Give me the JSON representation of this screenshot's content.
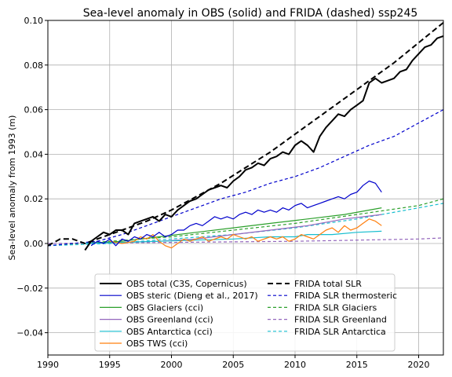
{
  "chart_data": {
    "type": "line",
    "title": "Sea-level anomaly in OBS (solid) and FRIDA (dashed) ssp245",
    "xlabel": "",
    "ylabel": "Sea-level anomaly from 1993 (m)",
    "xlim": [
      1990,
      2022
    ],
    "ylim": [
      -0.05,
      0.1
    ],
    "xticks": [
      1990,
      1995,
      2000,
      2005,
      2010,
      2015,
      2020
    ],
    "yticks": [
      -0.04,
      -0.02,
      0.0,
      0.02,
      0.04,
      0.06,
      0.08,
      0.1
    ],
    "ytick_labels": [
      "−0.04",
      "−0.02",
      "0.00",
      "0.02",
      "0.04",
      "0.06",
      "0.08",
      "0.10"
    ],
    "grid": true,
    "legend_placement": "bottom-center",
    "series": [
      {
        "name": "OBS total (C3S, Copernicus)",
        "color": "#000000",
        "style": "solid",
        "width": 2,
        "x": [
          1993.0,
          1993.5,
          1994.0,
          1994.5,
          1995.0,
          1995.5,
          1996.0,
          1996.5,
          1997.0,
          1997.5,
          1998.0,
          1998.5,
          1999.0,
          1999.5,
          2000.0,
          2000.5,
          2001.0,
          2001.5,
          2002.0,
          2002.5,
          2003.0,
          2003.5,
          2004.0,
          2004.5,
          2005.0,
          2005.5,
          2006.0,
          2006.5,
          2007.0,
          2007.5,
          2008.0,
          2008.5,
          2009.0,
          2009.5,
          2010.0,
          2010.5,
          2011.0,
          2011.5,
          2012.0,
          2012.5,
          2013.0,
          2013.5,
          2014.0,
          2014.5,
          2015.0,
          2015.5,
          2016.0,
          2016.5,
          2017.0,
          2017.5,
          2018.0,
          2018.5,
          2019.0,
          2019.5,
          2020.0,
          2020.5,
          2021.0,
          2021.5,
          2022.0
        ],
        "y": [
          -0.003,
          0.001,
          0.003,
          0.005,
          0.004,
          0.006,
          0.006,
          0.004,
          0.009,
          0.01,
          0.011,
          0.012,
          0.01,
          0.013,
          0.012,
          0.015,
          0.017,
          0.019,
          0.02,
          0.022,
          0.024,
          0.025,
          0.026,
          0.025,
          0.028,
          0.03,
          0.033,
          0.034,
          0.036,
          0.035,
          0.038,
          0.039,
          0.041,
          0.04,
          0.044,
          0.046,
          0.044,
          0.041,
          0.048,
          0.052,
          0.055,
          0.058,
          0.057,
          0.06,
          0.062,
          0.064,
          0.072,
          0.074,
          0.072,
          0.073,
          0.074,
          0.077,
          0.078,
          0.082,
          0.085,
          0.088,
          0.089,
          0.092,
          0.093
        ]
      },
      {
        "name": "OBS steric (Dieng et al., 2017)",
        "color": "#0000cc",
        "style": "solid",
        "width": 1.2,
        "x": [
          1993.5,
          1994.0,
          1994.5,
          1995.0,
          1995.5,
          1996.0,
          1996.5,
          1997.0,
          1997.5,
          1998.0,
          1998.5,
          1999.0,
          1999.5,
          2000.0,
          2000.5,
          2001.0,
          2001.5,
          2002.0,
          2002.5,
          2003.0,
          2003.5,
          2004.0,
          2004.5,
          2005.0,
          2005.5,
          2006.0,
          2006.5,
          2007.0,
          2007.5,
          2008.0,
          2008.5,
          2009.0,
          2009.5,
          2010.0,
          2010.5,
          2011.0,
          2011.5,
          2012.0,
          2012.5,
          2013.0,
          2013.5,
          2014.0,
          2014.5,
          2015.0,
          2015.5,
          2016.0,
          2016.5,
          2017.0
        ],
        "y": [
          -0.001,
          0.001,
          0.0,
          0.002,
          -0.001,
          0.002,
          0.001,
          0.003,
          0.002,
          0.004,
          0.003,
          0.005,
          0.003,
          0.004,
          0.006,
          0.006,
          0.008,
          0.009,
          0.008,
          0.01,
          0.012,
          0.011,
          0.012,
          0.011,
          0.013,
          0.014,
          0.013,
          0.015,
          0.014,
          0.015,
          0.014,
          0.016,
          0.015,
          0.017,
          0.018,
          0.016,
          0.017,
          0.018,
          0.019,
          0.02,
          0.021,
          0.02,
          0.022,
          0.023,
          0.026,
          0.028,
          0.027,
          0.023
        ]
      },
      {
        "name": "OBS Glaciers (cci)",
        "color": "#2ca02c",
        "style": "solid",
        "width": 1.2,
        "x": [
          1993,
          1996,
          1999,
          2002,
          2005,
          2008,
          2011,
          2014,
          2017
        ],
        "y": [
          0.0,
          0.001,
          0.003,
          0.005,
          0.007,
          0.009,
          0.011,
          0.013,
          0.016
        ]
      },
      {
        "name": "OBS Greenland (cci)",
        "color": "#9467bd",
        "style": "solid",
        "width": 1.2,
        "x": [
          1993,
          1996,
          1999,
          2002,
          2005,
          2008,
          2011,
          2014,
          2017
        ],
        "y": [
          0.0,
          0.0005,
          0.001,
          0.002,
          0.004,
          0.006,
          0.008,
          0.011,
          0.013
        ]
      },
      {
        "name": "OBS Antarctica (cci)",
        "color": "#17becf",
        "style": "solid",
        "width": 1.2,
        "x": [
          1993,
          1996,
          1999,
          2002,
          2005,
          2008,
          2010,
          2011,
          2013,
          2015,
          2017
        ],
        "y": [
          0.0,
          0.0005,
          0.001,
          0.0015,
          0.002,
          0.003,
          0.003,
          0.004,
          0.004,
          0.005,
          0.0055
        ]
      },
      {
        "name": "OBS TWS (cci)",
        "color": "#ff7f0e",
        "style": "solid",
        "width": 1.2,
        "x": [
          1995.0,
          1996.0,
          1997.0,
          1997.5,
          1998.0,
          1998.5,
          1999.0,
          1999.5,
          2000.0,
          2000.5,
          2001.0,
          2001.5,
          2002.0,
          2002.5,
          2003.0,
          2003.5,
          2004.0,
          2004.5,
          2005.0,
          2005.5,
          2006.0,
          2006.5,
          2007.0,
          2007.5,
          2008.0,
          2008.5,
          2009.0,
          2009.5,
          2010.0,
          2010.5,
          2011.0,
          2011.5,
          2012.0,
          2012.5,
          2013.0,
          2013.5,
          2014.0,
          2014.5,
          2015.0,
          2015.5,
          2016.0,
          2016.5,
          2017.0
        ],
        "y": [
          0.001,
          0.0,
          0.001,
          0.003,
          0.002,
          0.004,
          0.001,
          -0.001,
          -0.002,
          0.0,
          0.002,
          0.001,
          0.002,
          0.003,
          0.001,
          0.002,
          0.003,
          0.002,
          0.004,
          0.003,
          0.002,
          0.003,
          0.001,
          0.002,
          0.003,
          0.002,
          0.003,
          0.001,
          0.002,
          0.004,
          0.003,
          0.002,
          0.004,
          0.006,
          0.007,
          0.005,
          0.008,
          0.006,
          0.007,
          0.009,
          0.011,
          0.01,
          0.008
        ]
      },
      {
        "name": "FRIDA total SLR",
        "color": "#000000",
        "style": "dashed",
        "width": 2,
        "x": [
          1990,
          1991,
          1992,
          1993,
          1994,
          1996,
          1998,
          2000,
          2002,
          2004,
          2006,
          2008,
          2010,
          2012,
          2014,
          2016,
          2018,
          2020,
          2022
        ],
        "y": [
          -0.001,
          0.002,
          0.002,
          0.0,
          0.002,
          0.006,
          0.01,
          0.015,
          0.021,
          0.027,
          0.034,
          0.041,
          0.049,
          0.057,
          0.065,
          0.073,
          0.081,
          0.09,
          0.099
        ]
      },
      {
        "name": "FRIDA SLR thermosteric",
        "color": "#0000cc",
        "style": "dashed",
        "width": 1.2,
        "x": [
          1990,
          1992,
          1994,
          1996,
          1998,
          2000,
          2002,
          2004,
          2006,
          2008,
          2010,
          2012,
          2014,
          2016,
          2018,
          2020,
          2022
        ],
        "y": [
          -0.001,
          0.0,
          0.001,
          0.004,
          0.008,
          0.012,
          0.016,
          0.02,
          0.023,
          0.027,
          0.03,
          0.034,
          0.039,
          0.044,
          0.048,
          0.054,
          0.06
        ]
      },
      {
        "name": "FRIDA SLR Glaciers",
        "color": "#2ca02c",
        "style": "dashed",
        "width": 1.2,
        "x": [
          1990,
          1995,
          2000,
          2005,
          2010,
          2015,
          2020,
          2022
        ],
        "y": [
          -0.001,
          0.001,
          0.003,
          0.006,
          0.009,
          0.013,
          0.017,
          0.02
        ]
      },
      {
        "name": "FRIDA SLR Greenland",
        "color": "#9467bd",
        "style": "dashed",
        "width": 1.2,
        "x": [
          1990,
          2000,
          2010,
          2020,
          2022
        ],
        "y": [
          0.0,
          0.0005,
          0.001,
          0.002,
          0.0025
        ]
      },
      {
        "name": "FRIDA SLR Antarctica",
        "color": "#17becf",
        "style": "dashed",
        "width": 1.2,
        "x": [
          1990,
          1995,
          2000,
          2005,
          2010,
          2015,
          2020,
          2022
        ],
        "y": [
          -0.001,
          0.0,
          0.002,
          0.004,
          0.007,
          0.011,
          0.016,
          0.018
        ]
      }
    ],
    "legend_order": [
      0,
      6,
      1,
      7,
      2,
      8,
      3,
      9,
      4,
      10,
      5
    ]
  }
}
